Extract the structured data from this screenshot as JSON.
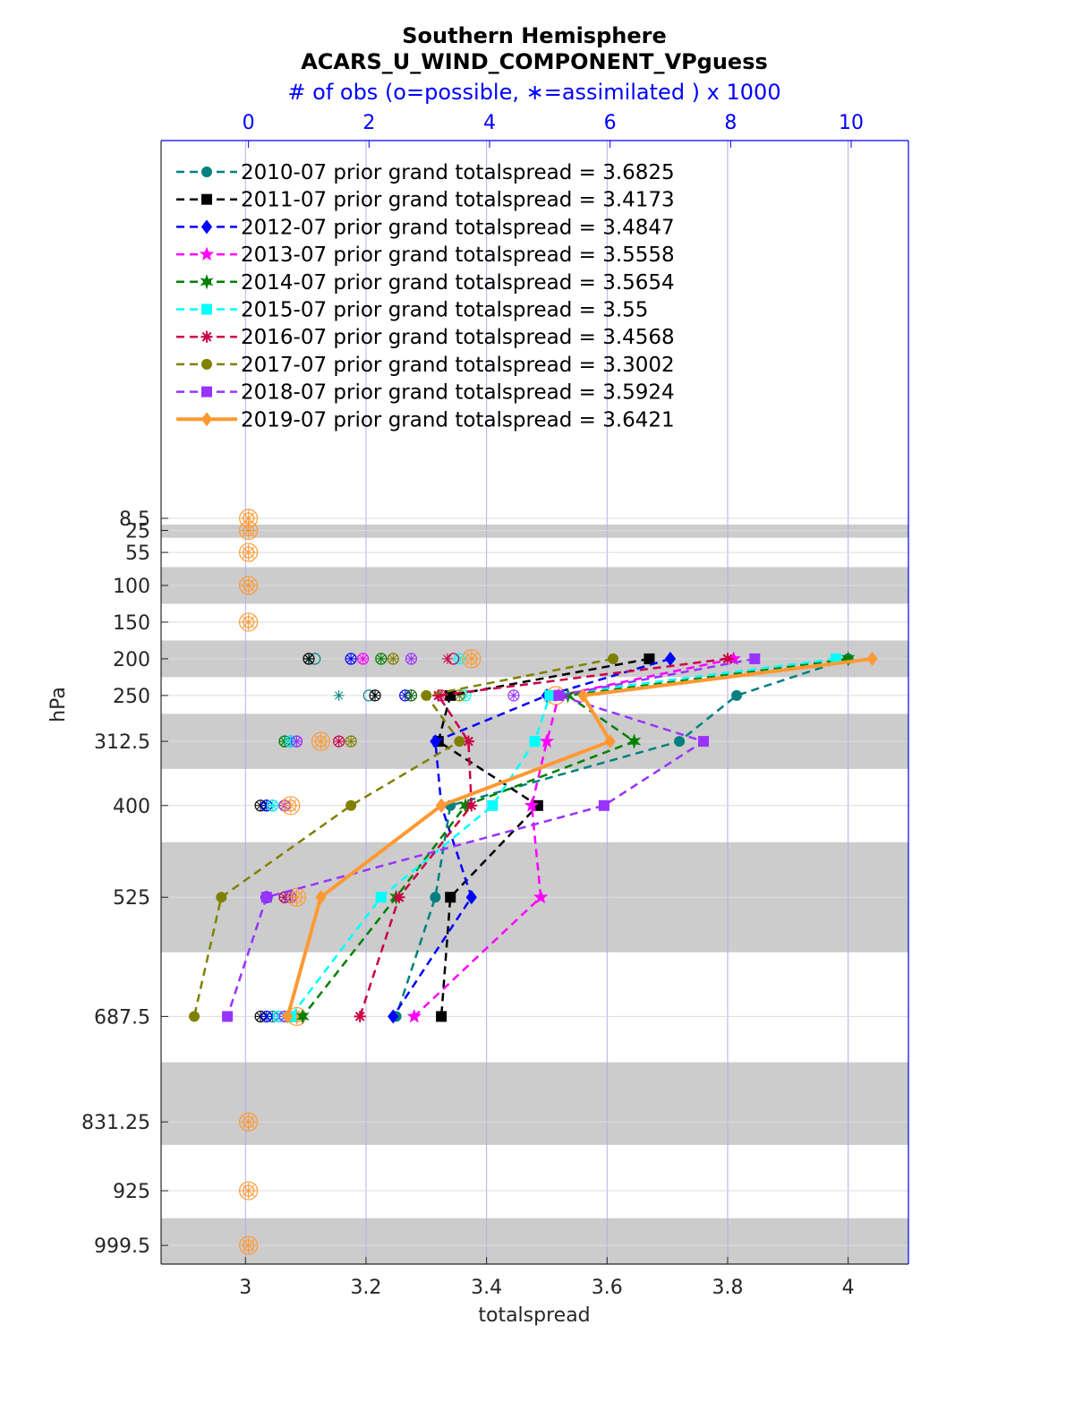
{
  "title": "Southern Hemisphere",
  "subtitle": "ACARS_U_WIND_COMPONENT_VPguess",
  "top_axis_label": "# of obs (o=possible, ∗=assimilated ) x 1000",
  "chart_data": {
    "type": "line",
    "xlabel": "totalspread",
    "ylabel": "hPa",
    "xlim": [
      2.86,
      4.1
    ],
    "x_ticks": [
      "3",
      "3.2",
      "3.4",
      "3.6",
      "3.8",
      "4"
    ],
    "top_xlim": [
      -1.45,
      10.95
    ],
    "top_ticks": [
      "0",
      "2",
      "4",
      "6",
      "8",
      "10"
    ],
    "y_scale": "categorical-reversed",
    "levels": [
      8.5,
      25,
      55,
      100,
      150,
      200,
      250,
      312.5,
      400,
      525,
      687.5,
      831.25,
      925,
      999.5
    ],
    "level_labels": [
      "8.5",
      "25",
      "55",
      "100",
      "150",
      "200",
      "250",
      "312.5",
      "400",
      "525",
      "687.5",
      "831.25",
      "925",
      "999.5"
    ],
    "y_range_hpa": [
      0,
      1025
    ],
    "shaded_bands_hpa": [
      [
        17,
        35
      ],
      [
        75,
        125
      ],
      [
        175,
        225
      ],
      [
        275,
        350
      ],
      [
        450,
        600
      ],
      [
        750,
        862.5
      ],
      [
        962.5,
        1025
      ]
    ],
    "grid": true,
    "legend_placement": "top-left",
    "series": [
      {
        "name": "2010-07 prior grand totalspread = 3.6825",
        "color": "#008080",
        "marker": "circle",
        "line": "dashed",
        "points": [
          [
            4.0,
            200
          ],
          [
            3.815,
            250
          ],
          [
            3.72,
            312.5
          ],
          [
            3.34,
            400
          ],
          [
            3.315,
            525
          ],
          [
            3.25,
            687.5
          ]
        ]
      },
      {
        "name": "2011-07 prior grand totalspread = 3.4173",
        "color": "#000000",
        "marker": "square",
        "line": "dashed",
        "points": [
          [
            3.67,
            200
          ],
          [
            3.34,
            250
          ],
          [
            3.32,
            312.5
          ],
          [
            3.485,
            400
          ],
          [
            3.34,
            525
          ],
          [
            3.325,
            687.5
          ]
        ]
      },
      {
        "name": "2012-07 prior grand totalspread = 3.4847",
        "color": "#0000ff",
        "marker": "diamond",
        "line": "dashed",
        "points": [
          [
            3.705,
            200
          ],
          [
            3.5,
            250
          ],
          [
            3.315,
            312.5
          ],
          [
            3.325,
            400
          ],
          [
            3.375,
            525
          ],
          [
            3.245,
            687.5
          ]
        ]
      },
      {
        "name": "2013-07 prior grand totalspread = 3.5558",
        "color": "#ff00ff",
        "marker": "star",
        "line": "dashed",
        "points": [
          [
            3.81,
            200
          ],
          [
            3.52,
            250
          ],
          [
            3.5,
            312.5
          ],
          [
            3.475,
            400
          ],
          [
            3.49,
            525
          ],
          [
            3.28,
            687.5
          ]
        ]
      },
      {
        "name": "2014-07 prior grand totalspread = 3.5654",
        "color": "#008000",
        "marker": "hexagram",
        "line": "dashed",
        "points": [
          [
            4.0,
            200
          ],
          [
            3.535,
            250
          ],
          [
            3.645,
            312.5
          ],
          [
            3.365,
            400
          ],
          [
            3.25,
            525
          ],
          [
            3.095,
            687.5
          ]
        ]
      },
      {
        "name": "2015-07 prior grand totalspread = 3.55",
        "color": "#00ffff",
        "marker": "square",
        "line": "dashed",
        "points": [
          [
            3.98,
            200
          ],
          [
            3.505,
            250
          ],
          [
            3.48,
            312.5
          ],
          [
            3.41,
            400
          ],
          [
            3.225,
            525
          ],
          [
            3.075,
            687.5
          ]
        ]
      },
      {
        "name": "2016-07 prior grand totalspread = 3.4568",
        "color": "#cc0044",
        "marker": "asterisk",
        "line": "dashed",
        "points": [
          [
            3.8,
            200
          ],
          [
            3.32,
            250
          ],
          [
            3.37,
            312.5
          ],
          [
            3.375,
            400
          ],
          [
            3.255,
            525
          ],
          [
            3.19,
            687.5
          ]
        ]
      },
      {
        "name": "2017-07 prior grand totalspread = 3.3002",
        "color": "#808000",
        "marker": "circle",
        "line": "dashed",
        "points": [
          [
            3.61,
            200
          ],
          [
            3.3,
            250
          ],
          [
            3.355,
            312.5
          ],
          [
            3.175,
            400
          ],
          [
            2.96,
            525
          ],
          [
            2.915,
            687.5
          ]
        ]
      },
      {
        "name": "2018-07 prior grand totalspread = 3.5924",
        "color": "#9933ff",
        "marker": "square",
        "line": "dashed",
        "points": [
          [
            3.845,
            200
          ],
          [
            3.52,
            250
          ],
          [
            3.76,
            312.5
          ],
          [
            3.595,
            400
          ],
          [
            3.035,
            525
          ],
          [
            2.97,
            687.5
          ]
        ]
      },
      {
        "name": "2019-07 prior grand totalspread = 3.6421",
        "color": "#ff9933",
        "marker": "diamond",
        "line": "solid",
        "points": [
          [
            4.04,
            200
          ],
          [
            3.56,
            250
          ],
          [
            3.605,
            312.5
          ],
          [
            3.325,
            400
          ],
          [
            3.125,
            525
          ],
          [
            3.07,
            687.5
          ]
        ]
      }
    ],
    "obs_counts_x1000": [
      {
        "name": "2010-07",
        "color": "#008080",
        "at_levels": [
          200,
          250,
          312.5,
          400,
          525,
          687.5
        ],
        "possible": [
          1.1,
          2.0,
          0.6,
          0.3,
          0.6,
          0.4
        ],
        "assimilated": [
          1.0,
          1.5,
          0.6,
          0.3,
          0.6,
          0.4
        ]
      },
      {
        "name": "2011-07",
        "color": "#000000",
        "at_levels": [
          200,
          250,
          312.5,
          400,
          525,
          687.5
        ],
        "possible": [
          1.0,
          2.1,
          0.7,
          0.2,
          0.3,
          0.2
        ],
        "assimilated": [
          1.0,
          2.1,
          0.7,
          0.2,
          0.3,
          0.2
        ]
      },
      {
        "name": "2012-07",
        "color": "#0000ff",
        "at_levels": [
          200,
          250,
          312.5,
          400,
          525,
          687.5
        ],
        "possible": [
          1.7,
          2.6,
          0.7,
          0.3,
          0.3,
          0.3
        ],
        "assimilated": [
          1.7,
          2.6,
          0.7,
          0.3,
          0.3,
          0.3
        ]
      },
      {
        "name": "2013-07",
        "color": "#ff00ff",
        "at_levels": [
          200,
          250,
          312.5,
          400,
          525,
          687.5
        ],
        "possible": [
          1.9,
          2.7,
          0.8,
          0.4,
          0.6,
          0.5
        ],
        "assimilated": [
          1.9,
          2.7,
          0.8,
          0.4,
          0.6,
          0.5
        ]
      },
      {
        "name": "2014-07",
        "color": "#008000",
        "at_levels": [
          200,
          250,
          312.5,
          400,
          525,
          687.5
        ],
        "possible": [
          2.2,
          2.7,
          0.6,
          0.4,
          0.7,
          0.8
        ],
        "assimilated": [
          2.2,
          2.7,
          0.6,
          0.4,
          0.7,
          0.8
        ]
      },
      {
        "name": "2015-07",
        "color": "#00ffff",
        "at_levels": [
          200,
          250,
          312.5,
          400,
          525,
          687.5
        ],
        "possible": [
          3.5,
          3.6,
          0.7,
          0.4,
          0.6,
          0.5
        ],
        "assimilated": [
          3.5,
          3.6,
          0.7,
          0.4,
          0.6,
          0.5
        ]
      },
      {
        "name": "2016-07",
        "color": "#cc0044",
        "at_levels": [
          200,
          250,
          312.5,
          400,
          525,
          687.5
        ],
        "possible": [
          3.4,
          3.2,
          1.5,
          0.6,
          0.6,
          0.6
        ],
        "assimilated": [
          3.3,
          3.2,
          1.5,
          0.6,
          0.6,
          0.6
        ]
      },
      {
        "name": "2017-07",
        "color": "#808000",
        "at_levels": [
          200,
          250,
          312.5,
          400,
          525,
          687.5
        ],
        "possible": [
          2.4,
          3.5,
          1.7,
          0.6,
          0.7,
          0.7
        ],
        "assimilated": [
          2.4,
          3.5,
          1.7,
          0.6,
          0.7,
          0.7
        ]
      },
      {
        "name": "2018-07",
        "color": "#9933ff",
        "at_levels": [
          200,
          250,
          312.5,
          400,
          525,
          687.5
        ],
        "possible": [
          2.7,
          4.4,
          0.8,
          0.6,
          0.7,
          0.6
        ],
        "assimilated": [
          2.7,
          4.4,
          0.8,
          0.6,
          0.7,
          0.6
        ]
      },
      {
        "name": "2019-07",
        "color": "#ff9933",
        "at_levels": [
          8.5,
          25,
          55,
          100,
          150,
          200,
          250,
          312.5,
          400,
          525,
          687.5,
          831.25,
          925,
          999.5
        ],
        "possible": [
          0,
          0,
          0,
          0,
          0,
          3.7,
          5.1,
          1.2,
          0.7,
          0.8,
          0.8,
          0,
          0,
          0
        ],
        "assimilated": [
          0,
          0,
          0,
          0,
          0,
          3.7,
          5.0,
          1.2,
          0.7,
          0.8,
          0.8,
          0,
          0,
          0
        ]
      }
    ]
  }
}
